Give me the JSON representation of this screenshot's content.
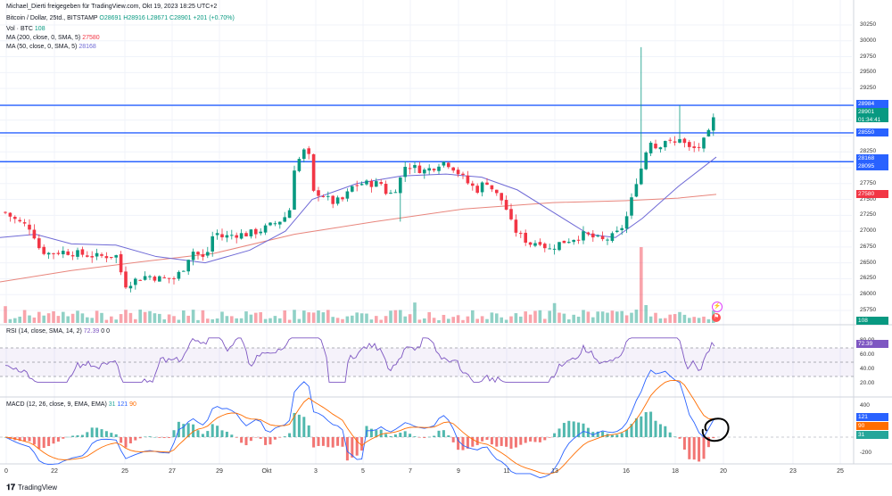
{
  "header": {
    "publisher": "Michael_Dierti freigegeben für TradingView.com, Okt 19, 2023 18:25 UTC+2",
    "symbol": "Bitcoin / Dollar, 25td., BITSTAMP",
    "ohlc": "O28691 H28916 L28671 C28901 +201 (+0.70%)",
    "volume_label": "Vol · BTC",
    "volume_value": "108",
    "ma200_label": "MA (200, close, 0, SMA, 5)",
    "ma200_value": "27580",
    "ma50_label": "MA (50, close, 0, SMA, 5)",
    "ma50_value": "28168"
  },
  "rsi": {
    "label": "RSI (14, close, SMA, 14, 2)",
    "value": "72.39",
    "extra": "0 0"
  },
  "macd": {
    "label": "MACD (12, 26, close, 9, EMA, EMA)",
    "v1": "31",
    "v2": "121",
    "v3": "90"
  },
  "price_axis": [
    "30250",
    "30000",
    "29750",
    "29500",
    "29250",
    "29000",
    "28750",
    "28500",
    "28250",
    "28000",
    "27750",
    "27500",
    "27250",
    "27000",
    "26750",
    "26500",
    "26250",
    "26000",
    "25750"
  ],
  "price_tags": {
    "level_top": "28984",
    "current": "28901",
    "countdown": "01:34:41",
    "level_mid": "28550",
    "ma50": "28168",
    "level_low": "28095",
    "ma200": "27580",
    "volume": "108"
  },
  "rsi_axis": [
    "80.00",
    "60.00",
    "40.00",
    "20.00"
  ],
  "macd_axis": [
    "400",
    "0",
    "-200"
  ],
  "macd_tags": {
    "macd": "121",
    "signal": "90",
    "hist": "31"
  },
  "x_axis": [
    "0",
    "22",
    "25",
    "27",
    "29",
    "Okt",
    "3",
    "5",
    "7",
    "9",
    "11",
    "13",
    "16",
    "18",
    "20",
    "23",
    "25"
  ],
  "footer": {
    "brand": "TradingView"
  },
  "colors": {
    "up": "#089981",
    "down": "#f23645",
    "ma50": "#6f6ad6",
    "ma200": "#e8857c",
    "level": "#2962ff",
    "rsi": "#7e57c2",
    "macd": "#2962ff",
    "signal": "#ff6d00"
  },
  "icons": [
    "lightning-icon",
    "flag-icon"
  ]
}
